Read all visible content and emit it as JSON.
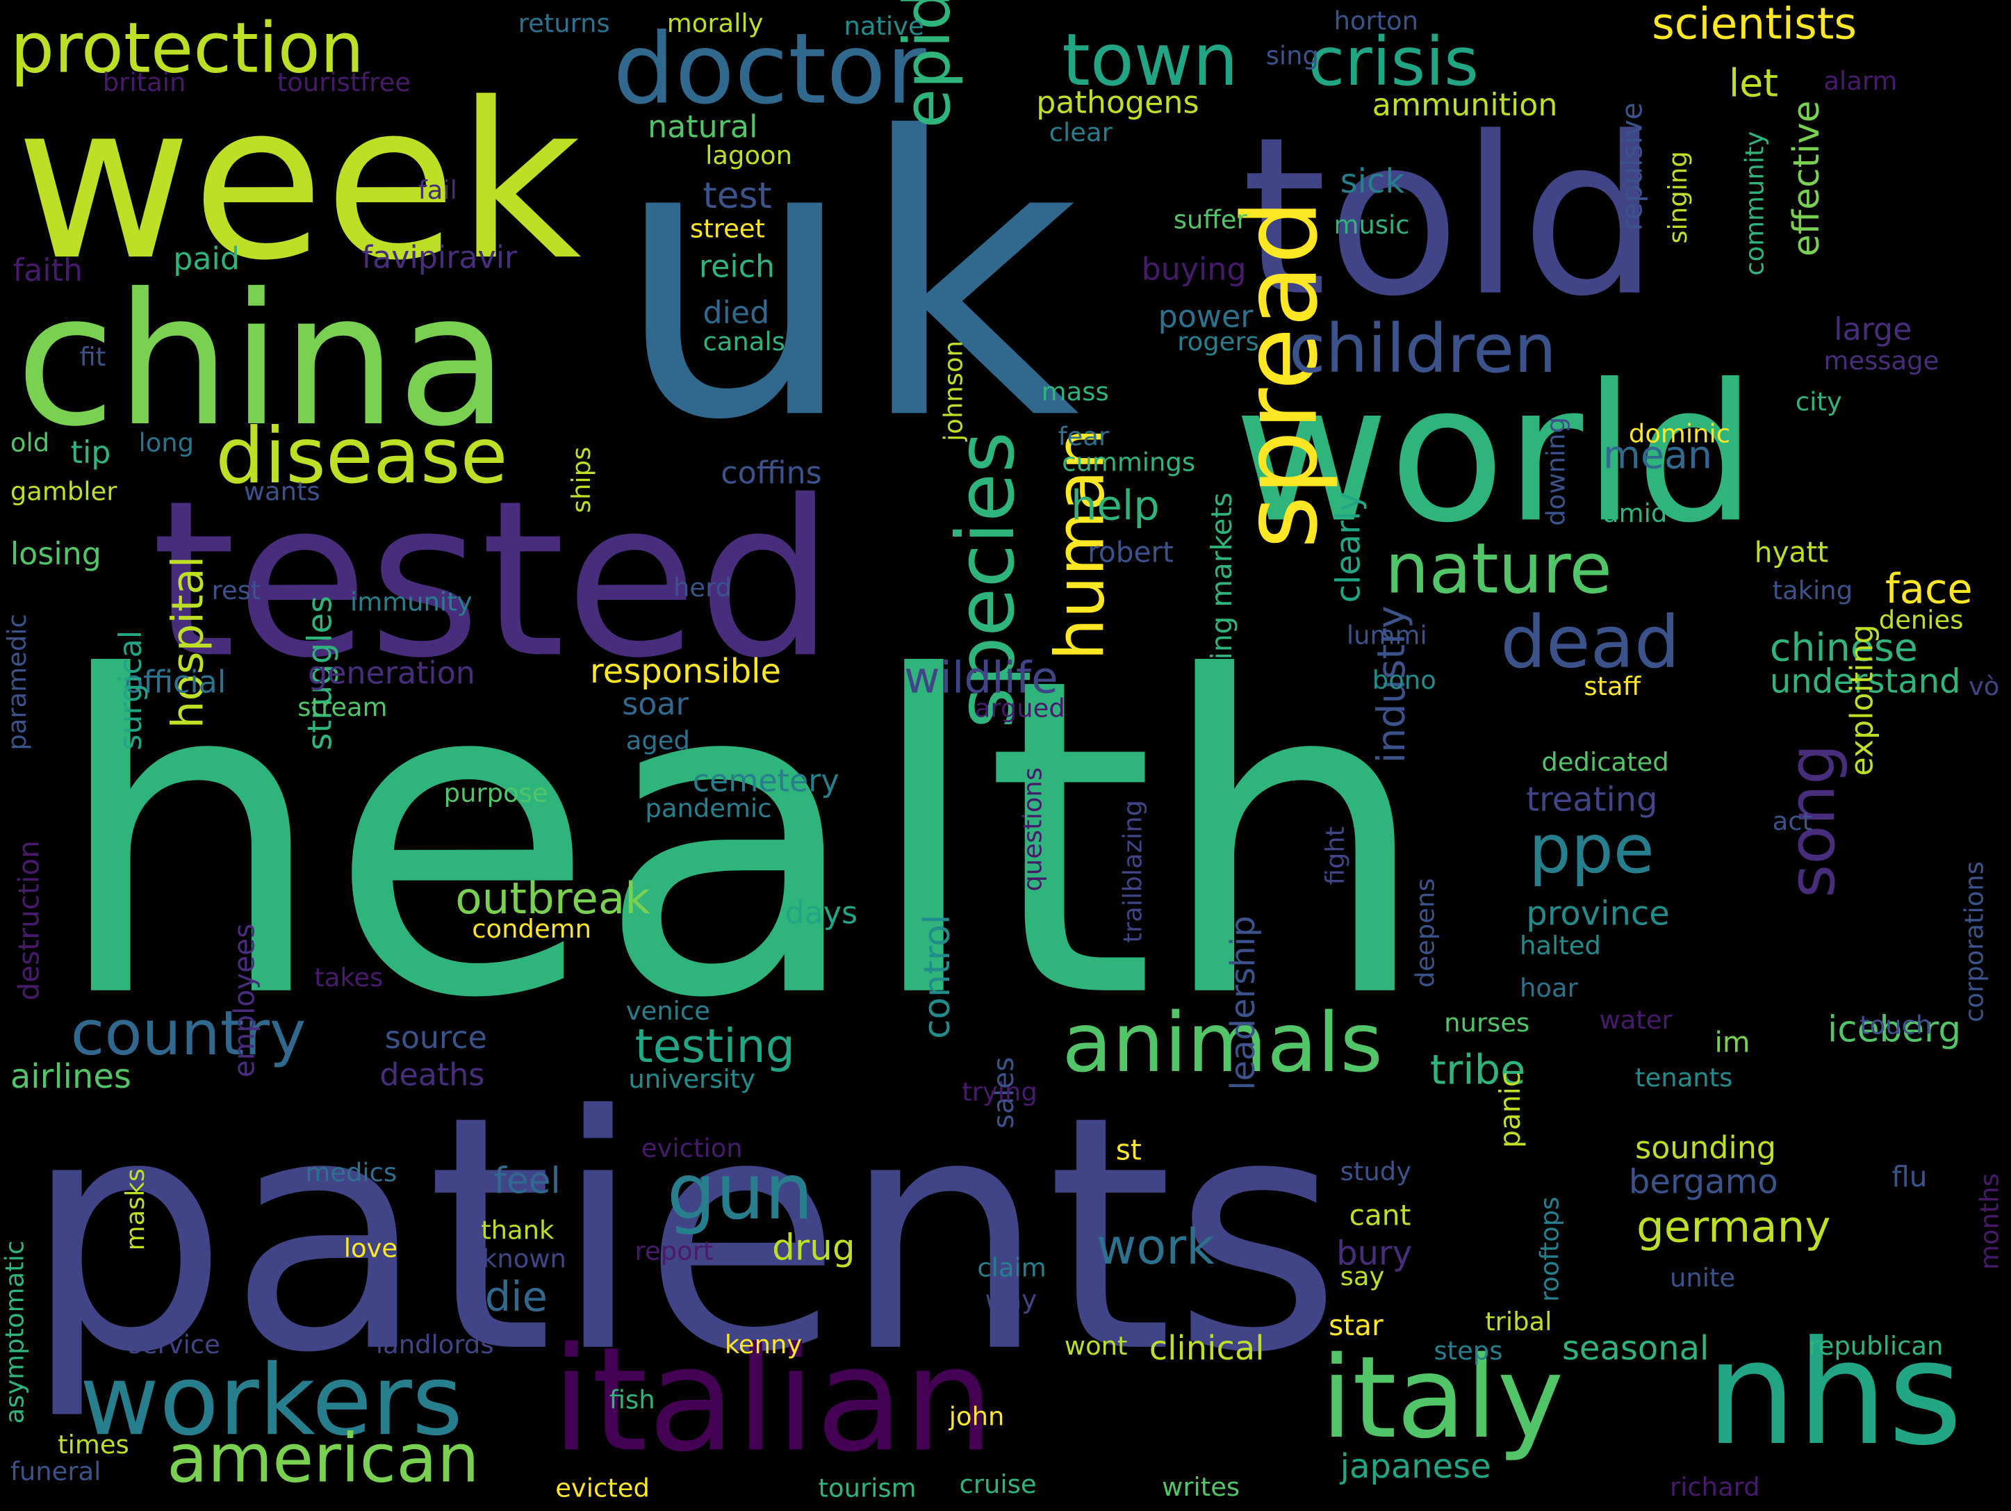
{
  "colors": {
    "background": "#000000",
    "lime": "#bddf26",
    "yellow": "#fde725",
    "green": "#7ad151",
    "lightgreen": "#52c569",
    "seagreen": "#2fb47c",
    "teal": "#21a585",
    "tealdark": "#1f9e89",
    "cyan": "#228c8d",
    "steel": "#277f8e",
    "blue": "#2c728e",
    "bluedark": "#31688e",
    "navy": "#3b528b",
    "indigo": "#414487",
    "purple": "#472d7b",
    "darkpurple": "#481a6c",
    "deep": "#440154"
  },
  "words": [
    {
      "text": "health",
      "color": "seagreen"
    },
    {
      "text": "patients",
      "color": "indigo"
    },
    {
      "text": "uk",
      "color": "bluedark"
    },
    {
      "text": "tested",
      "color": "purple"
    },
    {
      "text": "told",
      "color": "indigo"
    },
    {
      "text": "week",
      "color": "lime"
    },
    {
      "text": "world",
      "color": "seagreen"
    },
    {
      "text": "china",
      "color": "green"
    },
    {
      "text": "italian",
      "color": "deep"
    },
    {
      "text": "nhs",
      "color": "teal"
    },
    {
      "text": "italy",
      "color": "lightgreen"
    },
    {
      "text": "workers",
      "color": "steel"
    },
    {
      "text": "doctor",
      "color": "bluedark"
    },
    {
      "text": "disease",
      "color": "lime"
    },
    {
      "text": "protection",
      "color": "lime"
    },
    {
      "text": "spread",
      "color": "yellow"
    },
    {
      "text": "animals",
      "color": "lightgreen"
    },
    {
      "text": "american",
      "color": "green"
    },
    {
      "text": "children",
      "color": "navy"
    },
    {
      "text": "crisis",
      "color": "teal"
    },
    {
      "text": "town",
      "color": "teal"
    },
    {
      "text": "nature",
      "color": "lightgreen"
    },
    {
      "text": "country",
      "color": "bluedark"
    },
    {
      "text": "species",
      "color": "seagreen"
    },
    {
      "text": "epidemic",
      "color": "seagreen"
    },
    {
      "text": "human",
      "color": "yellow"
    },
    {
      "text": "gun",
      "color": "steel"
    },
    {
      "text": "dead",
      "color": "navy"
    },
    {
      "text": "ppe",
      "color": "steel"
    },
    {
      "text": "scientists",
      "color": "yellow"
    },
    {
      "text": "song",
      "color": "purple"
    },
    {
      "text": "outbreak",
      "color": "green"
    },
    {
      "text": "testing",
      "color": "teal"
    },
    {
      "text": "germany",
      "color": "lime"
    },
    {
      "text": "chinese",
      "color": "seagreen"
    },
    {
      "text": "face",
      "color": "yellow"
    },
    {
      "text": "wildlife",
      "color": "indigo"
    },
    {
      "text": "hospital",
      "color": "lime"
    },
    {
      "text": "work",
      "color": "blue"
    },
    {
      "text": "tribe",
      "color": "seagreen"
    },
    {
      "text": "iceberg",
      "color": "lightgreen"
    },
    {
      "text": "industry",
      "color": "navy"
    },
    {
      "text": "control",
      "color": "cyan"
    },
    {
      "text": "clinical",
      "color": "lime"
    },
    {
      "text": "seasonal",
      "color": "seagreen"
    },
    {
      "text": "mean",
      "color": "bluedark"
    },
    {
      "text": "help",
      "color": "seagreen"
    },
    {
      "text": "understand",
      "color": "seagreen"
    },
    {
      "text": "airlines",
      "color": "lightgreen"
    },
    {
      "text": "responsible",
      "color": "yellow"
    },
    {
      "text": "struggles",
      "color": "seagreen"
    },
    {
      "text": "japanese",
      "color": "teal"
    },
    {
      "text": "treating",
      "color": "indigo"
    },
    {
      "text": "province",
      "color": "cyan"
    },
    {
      "text": "exploiting",
      "color": "lime"
    },
    {
      "text": "die",
      "color": "bluedark"
    },
    {
      "text": "drug",
      "color": "lime"
    },
    {
      "text": "feel",
      "color": "bluedark"
    },
    {
      "text": "bergamo",
      "color": "navy"
    },
    {
      "text": "sounding",
      "color": "lime"
    },
    {
      "text": "coffins",
      "color": "navy"
    },
    {
      "text": "losing",
      "color": "lightgreen"
    },
    {
      "text": "official",
      "color": "blue"
    },
    {
      "text": "deaths",
      "color": "purple"
    },
    {
      "text": "source",
      "color": "navy"
    },
    {
      "text": "cemetery",
      "color": "steel"
    },
    {
      "text": "days",
      "color": "teal"
    },
    {
      "text": "surgical",
      "color": "teal"
    },
    {
      "text": "leadership",
      "color": "navy"
    },
    {
      "text": "burring markets",
      "color": "seagreen"
    },
    {
      "text": "clearly",
      "color": "teal"
    },
    {
      "text": "favipiravir",
      "color": "purple"
    },
    {
      "text": "generation",
      "color": "purple"
    },
    {
      "text": "reich",
      "color": "seagreen"
    },
    {
      "text": "test",
      "color": "navy"
    },
    {
      "text": "sick",
      "color": "steel"
    },
    {
      "text": "ammunition",
      "color": "lime"
    },
    {
      "text": "pathogens",
      "color": "lime"
    },
    {
      "text": "natural",
      "color": "lightgreen"
    },
    {
      "text": "let",
      "color": "lime"
    },
    {
      "text": "effective",
      "color": "green"
    },
    {
      "text": "repulsive",
      "color": "navy"
    },
    {
      "text": "employees",
      "color": "purple"
    },
    {
      "text": "sales",
      "color": "navy"
    },
    {
      "text": "panic",
      "color": "lime"
    },
    {
      "text": "rooftops",
      "color": "steel"
    },
    {
      "text": "flu",
      "color": "navy"
    },
    {
      "text": "buying",
      "color": "darkpurple"
    },
    {
      "text": "power",
      "color": "blue"
    },
    {
      "text": "large",
      "color": "purple"
    },
    {
      "text": "hyatt",
      "color": "lime"
    },
    {
      "text": "robert",
      "color": "navy"
    },
    {
      "text": "soar",
      "color": "bluedark"
    },
    {
      "text": "died",
      "color": "bluedark"
    },
    {
      "text": "tip",
      "color": "seagreen"
    },
    {
      "text": "paid",
      "color": "seagreen"
    },
    {
      "text": "faith",
      "color": "darkpurple"
    },
    {
      "text": "tribal",
      "color": "lime"
    },
    {
      "text": "bury",
      "color": "purple"
    },
    {
      "text": "cant",
      "color": "lime"
    },
    {
      "text": "study",
      "color": "navy"
    },
    {
      "text": "staff",
      "color": "yellow"
    },
    {
      "text": "dedicated",
      "color": "lightgreen"
    },
    {
      "text": "destruction",
      "color": "darkpurple"
    },
    {
      "text": "purpose",
      "color": "lightgreen"
    },
    {
      "text": "condemn",
      "color": "yellow"
    },
    {
      "text": "pandemic",
      "color": "steel"
    },
    {
      "text": "university",
      "color": "cyan"
    },
    {
      "text": "trying",
      "color": "darkpurple"
    },
    {
      "text": "star",
      "color": "yellow"
    },
    {
      "text": "kenny",
      "color": "yellow"
    },
    {
      "text": "steps",
      "color": "steel"
    },
    {
      "text": "republican",
      "color": "seagreen"
    },
    {
      "text": "nurses",
      "color": "lightgreen"
    },
    {
      "text": "im",
      "color": "green"
    },
    {
      "text": "water",
      "color": "darkpurple"
    },
    {
      "text": "touch",
      "color": "navy"
    },
    {
      "text": "returns",
      "color": "blue"
    },
    {
      "text": "morally",
      "color": "lime"
    },
    {
      "text": "native",
      "color": "cyan"
    },
    {
      "text": "horton",
      "color": "navy"
    },
    {
      "text": "sing",
      "color": "navy"
    },
    {
      "text": "britain",
      "color": "darkpurple"
    },
    {
      "text": "touristfree",
      "color": "darkpurple"
    },
    {
      "text": "lagoon",
      "color": "lime"
    },
    {
      "text": "clear",
      "color": "steel"
    },
    {
      "text": "alarm",
      "color": "darkpurple"
    },
    {
      "text": "fail",
      "color": "purple"
    },
    {
      "text": "street",
      "color": "yellow"
    },
    {
      "text": "suffer",
      "color": "lightgreen"
    },
    {
      "text": "music",
      "color": "seagreen"
    },
    {
      "text": "singing",
      "color": "lime"
    },
    {
      "text": "community",
      "color": "seagreen"
    },
    {
      "text": "canals",
      "color": "seagreen"
    },
    {
      "text": "rogers",
      "color": "steel"
    },
    {
      "text": "message",
      "color": "purple"
    },
    {
      "text": "fit",
      "color": "navy"
    },
    {
      "text": "johnson",
      "color": "lime"
    },
    {
      "text": "mass",
      "color": "seagreen"
    },
    {
      "text": "city",
      "color": "seagreen"
    },
    {
      "text": "old",
      "color": "lightgreen"
    },
    {
      "text": "long",
      "color": "blue"
    },
    {
      "text": "fear",
      "color": "blue"
    },
    {
      "text": "cummings",
      "color": "seagreen"
    },
    {
      "text": "dominic",
      "color": "yellow"
    },
    {
      "text": "downing",
      "color": "navy"
    },
    {
      "text": "gambler",
      "color": "lime"
    },
    {
      "text": "wants",
      "color": "navy"
    },
    {
      "text": "ships",
      "color": "lime"
    },
    {
      "text": "amid",
      "color": "seagreen"
    },
    {
      "text": "rest",
      "color": "navy"
    },
    {
      "text": "immunity",
      "color": "steel"
    },
    {
      "text": "herd",
      "color": "navy"
    },
    {
      "text": "taking",
      "color": "navy"
    },
    {
      "text": "denies",
      "color": "lime"
    },
    {
      "text": "lummi",
      "color": "navy"
    },
    {
      "text": "bono",
      "color": "cyan"
    },
    {
      "text": "vò",
      "color": "indigo"
    },
    {
      "text": "paramedic",
      "color": "navy"
    },
    {
      "text": "stream",
      "color": "lightgreen"
    },
    {
      "text": "argued",
      "color": "darkpurple"
    },
    {
      "text": "aged",
      "color": "blue"
    },
    {
      "text": "questions",
      "color": "darkpurple"
    },
    {
      "text": "trailblazing",
      "color": "indigo"
    },
    {
      "text": "fight",
      "color": "indigo"
    },
    {
      "text": "act",
      "color": "navy"
    },
    {
      "text": "corporations",
      "color": "navy"
    },
    {
      "text": "deepens",
      "color": "navy"
    },
    {
      "text": "halted",
      "color": "cyan"
    },
    {
      "text": "hoar",
      "color": "blue"
    },
    {
      "text": "takes",
      "color": "darkpurple"
    },
    {
      "text": "venice",
      "color": "steel"
    },
    {
      "text": "tenants",
      "color": "cyan"
    },
    {
      "text": "eviction",
      "color": "darkpurple"
    },
    {
      "text": "st",
      "color": "yellow"
    },
    {
      "text": "medics",
      "color": "blue"
    },
    {
      "text": "masks",
      "color": "lime"
    },
    {
      "text": "asymptomatic",
      "color": "seagreen"
    },
    {
      "text": "love",
      "color": "yellow"
    },
    {
      "text": "thank",
      "color": "lime"
    },
    {
      "text": "known",
      "color": "indigo"
    },
    {
      "text": "report",
      "color": "darkpurple"
    },
    {
      "text": "claim",
      "color": "steel"
    },
    {
      "text": "way",
      "color": "indigo"
    },
    {
      "text": "say",
      "color": "lime"
    },
    {
      "text": "unite",
      "color": "navy"
    },
    {
      "text": "months",
      "color": "darkpurple"
    },
    {
      "text": "service",
      "color": "indigo"
    },
    {
      "text": "landlords",
      "color": "indigo"
    },
    {
      "text": "wont",
      "color": "lime"
    },
    {
      "text": "fish",
      "color": "seagreen"
    },
    {
      "text": "times",
      "color": "lime"
    },
    {
      "text": "john",
      "color": "yellow"
    },
    {
      "text": "funeral",
      "color": "navy"
    },
    {
      "text": "evicted",
      "color": "yellow"
    },
    {
      "text": "tourism",
      "color": "seagreen"
    },
    {
      "text": "cruise",
      "color": "seagreen"
    },
    {
      "text": "writes",
      "color": "lightgreen"
    },
    {
      "text": "richard",
      "color": "darkpurple"
    }
  ]
}
